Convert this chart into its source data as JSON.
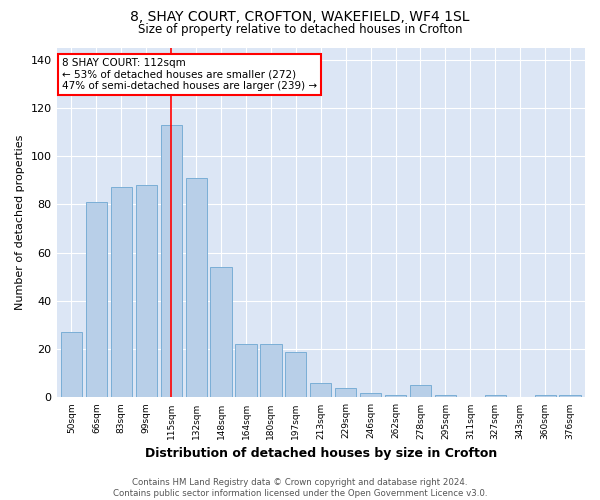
{
  "title1": "8, SHAY COURT, CROFTON, WAKEFIELD, WF4 1SL",
  "title2": "Size of property relative to detached houses in Crofton",
  "xlabel": "Distribution of detached houses by size in Crofton",
  "ylabel": "Number of detached properties",
  "footer": "Contains HM Land Registry data © Crown copyright and database right 2024.\nContains public sector information licensed under the Open Government Licence v3.0.",
  "categories": [
    "50sqm",
    "66sqm",
    "83sqm",
    "99sqm",
    "115sqm",
    "132sqm",
    "148sqm",
    "164sqm",
    "180sqm",
    "197sqm",
    "213sqm",
    "229sqm",
    "246sqm",
    "262sqm",
    "278sqm",
    "295sqm",
    "311sqm",
    "327sqm",
    "343sqm",
    "360sqm",
    "376sqm"
  ],
  "values": [
    27,
    81,
    87,
    88,
    113,
    91,
    54,
    22,
    22,
    19,
    6,
    4,
    2,
    1,
    5,
    1,
    0,
    1,
    0,
    1,
    1
  ],
  "bar_color": "#b8cfe8",
  "bar_edge_color": "#7aaed6",
  "background_color": "#dce6f5",
  "vline_x": 4,
  "vline_color": "red",
  "annotation_text": "8 SHAY COURT: 112sqm\n← 53% of detached houses are smaller (272)\n47% of semi-detached houses are larger (239) →",
  "ylim": [
    0,
    145
  ],
  "yticks": [
    0,
    20,
    40,
    60,
    80,
    100,
    120,
    140
  ]
}
